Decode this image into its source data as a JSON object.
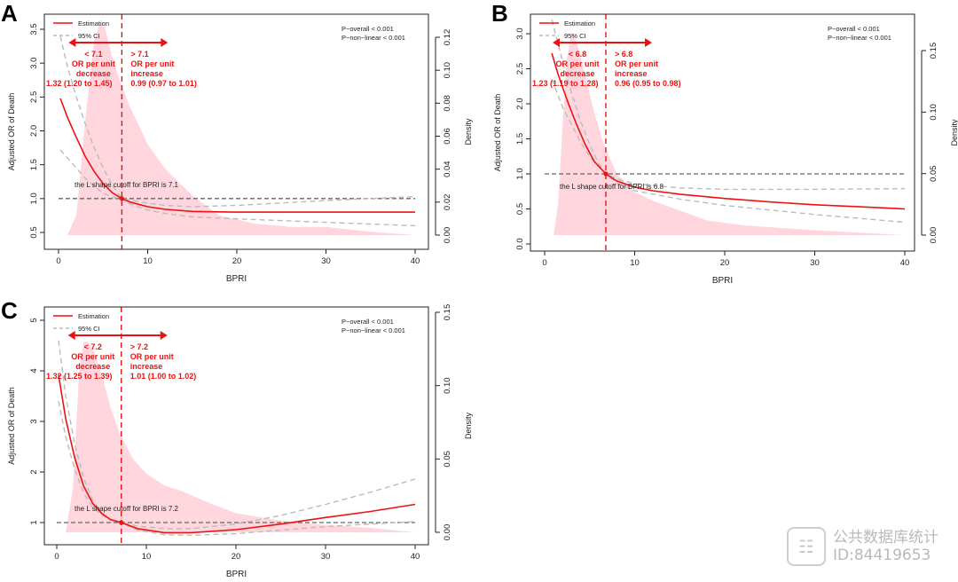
{
  "chart_data": [
    {
      "panel": "A",
      "type": "line",
      "xlabel": "BPRI",
      "ylabel": "Adjusted OR of Death",
      "y2label": "Density",
      "xlim": [
        0,
        40
      ],
      "ylim": [
        0.5,
        3.5
      ],
      "y2lim": [
        0.0,
        0.12
      ],
      "xticks": [
        0,
        10,
        20,
        30,
        40
      ],
      "yticks": [
        "0.5",
        "1.0",
        "1.5",
        "2.0",
        "2.5",
        "3.0",
        "3.5"
      ],
      "y2ticks": [
        "0.00",
        "0.02",
        "0.04",
        "0.06",
        "0.08",
        "0.10",
        "0.12"
      ],
      "legend": [
        "Estimation",
        "95% CI"
      ],
      "p_overall": "P−overall < 0.001",
      "p_nonlinear": "P−non−linear < 0.001",
      "cutoff": 7.1,
      "cutoff_text": "the L shape cutoff for BPRI is 7.1",
      "left_label": [
        "< 7.1",
        "OR per unit",
        "decrease",
        "1.32 (1.20 to 1.45)"
      ],
      "right_label": [
        "> 7.1",
        "OR per unit",
        "increase",
        "0.99 (0.97 to 1.01)"
      ],
      "estimation": {
        "x": [
          0.2,
          1,
          2,
          3,
          4,
          5,
          6,
          7.1,
          8,
          10,
          12,
          15,
          20,
          25,
          30,
          40
        ],
        "y": [
          2.48,
          2.2,
          1.9,
          1.62,
          1.4,
          1.22,
          1.09,
          1.0,
          0.95,
          0.88,
          0.84,
          0.81,
          0.8,
          0.8,
          0.8,
          0.8
        ]
      },
      "ci_upper": {
        "x": [
          0.2,
          1,
          2,
          3,
          4,
          5,
          6,
          7.1,
          8,
          10,
          12,
          15,
          20,
          30,
          40
        ],
        "y": [
          3.4,
          2.95,
          2.5,
          2.1,
          1.75,
          1.45,
          1.2,
          1.0,
          0.98,
          0.93,
          0.9,
          0.88,
          0.9,
          0.97,
          1.03
        ]
      },
      "ci_lower": {
        "x": [
          0.2,
          1,
          2,
          3,
          4,
          5,
          6,
          7.1,
          8,
          10,
          12,
          15,
          20,
          30,
          40
        ],
        "y": [
          1.72,
          1.6,
          1.45,
          1.3,
          1.18,
          1.08,
          1.02,
          1.0,
          0.92,
          0.83,
          0.78,
          0.73,
          0.7,
          0.65,
          0.6
        ]
      },
      "density": {
        "x": [
          1,
          2,
          3,
          4,
          4.6,
          5.2,
          6,
          7,
          8,
          10,
          12,
          15,
          18,
          22,
          26,
          30,
          35,
          40
        ],
        "y": [
          0.0,
          0.012,
          0.07,
          0.118,
          0.128,
          0.126,
          0.108,
          0.092,
          0.078,
          0.055,
          0.04,
          0.024,
          0.012,
          0.007,
          0.005,
          0.005,
          0.002,
          0.0
        ]
      }
    },
    {
      "panel": "B",
      "type": "line",
      "xlabel": "BPRI",
      "ylabel": "Adjusted OR of Death",
      "y2label": "Density",
      "xlim": [
        0,
        40
      ],
      "ylim": [
        0.0,
        3.0
      ],
      "y2lim": [
        0.0,
        0.15
      ],
      "xticks": [
        0,
        10,
        20,
        30,
        40
      ],
      "yticks": [
        "0.0",
        "0.5",
        "1.0",
        "1.5",
        "2.0",
        "2.5",
        "3.0"
      ],
      "y2ticks": [
        "0.00",
        "0.05",
        "0.10",
        "0.15"
      ],
      "legend": [
        "Estimation",
        "95% CI"
      ],
      "p_overall": "P−overall < 0.001",
      "p_nonlinear": "P−non−linear < 0.001",
      "cutoff": 6.8,
      "cutoff_text": "the L shape cutoff for BPRI is 6.8",
      "left_label": [
        "< 6.8",
        "OR per unit",
        "decrease",
        "1.23 (1.19 to 1.28)"
      ],
      "right_label": [
        "> 6.8",
        "OR per unit",
        "increase",
        "0.96 (0.95 to 0.98)"
      ],
      "estimation": {
        "x": [
          0.8,
          1.5,
          2.5,
          3.5,
          4.5,
          5.5,
          6.8,
          8,
          10,
          12,
          15,
          20,
          25,
          30,
          35,
          40
        ],
        "y": [
          2.72,
          2.42,
          2.05,
          1.72,
          1.42,
          1.18,
          1.0,
          0.9,
          0.81,
          0.76,
          0.71,
          0.65,
          0.6,
          0.56,
          0.53,
          0.5
        ]
      },
      "ci_upper": {
        "x": [
          0.8,
          2,
          3,
          4,
          5,
          6,
          6.8,
          8,
          10,
          15,
          20,
          30,
          40
        ],
        "y": [
          3.2,
          2.6,
          2.15,
          1.75,
          1.42,
          1.15,
          1.0,
          0.93,
          0.86,
          0.8,
          0.78,
          0.78,
          0.79
        ]
      },
      "ci_lower": {
        "x": [
          0.8,
          2,
          3,
          4,
          5,
          6,
          6.8,
          8,
          10,
          15,
          20,
          30,
          40
        ],
        "y": [
          2.35,
          1.95,
          1.7,
          1.45,
          1.25,
          1.1,
          1.0,
          0.87,
          0.76,
          0.64,
          0.55,
          0.42,
          0.31
        ]
      },
      "density": {
        "x": [
          1,
          1.5,
          2,
          2.5,
          3,
          3.5,
          4.5,
          5.5,
          6.5,
          8,
          10,
          12,
          15,
          18,
          22,
          26,
          30,
          35,
          40
        ],
        "y": [
          0.0,
          0.025,
          0.09,
          0.145,
          0.165,
          0.158,
          0.13,
          0.1,
          0.075,
          0.05,
          0.035,
          0.028,
          0.02,
          0.012,
          0.008,
          0.006,
          0.004,
          0.002,
          0.0
        ]
      }
    },
    {
      "panel": "C",
      "type": "line",
      "xlabel": "BPRI",
      "ylabel": "Adjusted OR of Death",
      "y2label": "Density",
      "xlim": [
        0,
        40
      ],
      "ylim": [
        0.7,
        5.0
      ],
      "y2lim": [
        0.0,
        0.15
      ],
      "xticks": [
        0,
        10,
        20,
        30,
        40
      ],
      "yticks": [
        "1",
        "2",
        "3",
        "4",
        "5"
      ],
      "y2ticks": [
        "0.00",
        "0.05",
        "0.10",
        "0.15"
      ],
      "legend": [
        "Estimation",
        "95% CI"
      ],
      "p_overall": "P−overall < 0.001",
      "p_nonlinear": "P−non−linear < 0.001",
      "cutoff": 7.2,
      "cutoff_text": "the L shape cutoff for BPRI is 7.2",
      "left_label": [
        "< 7.2",
        "OR per unit",
        "decrease",
        "1.32 (1.25 to 1.39)"
      ],
      "right_label": [
        "> 7.2",
        "OR per unit",
        "increase",
        "1.01 (1.00 to 1.02)"
      ],
      "estimation": {
        "x": [
          0.2,
          1,
          2,
          3,
          4,
          5,
          6,
          7.2,
          9,
          12,
          15,
          20,
          25,
          30,
          35,
          40
        ],
        "y": [
          3.92,
          3.05,
          2.28,
          1.72,
          1.38,
          1.18,
          1.06,
          1.0,
          0.88,
          0.8,
          0.8,
          0.86,
          0.97,
          1.1,
          1.22,
          1.36
        ]
      },
      "ci_upper": {
        "x": [
          0.2,
          1,
          2,
          3,
          4,
          5,
          6,
          7.2,
          9,
          12,
          15,
          20,
          25,
          30,
          35,
          40
        ],
        "y": [
          4.6,
          3.5,
          2.55,
          1.88,
          1.45,
          1.2,
          1.06,
          1.0,
          0.93,
          0.88,
          0.88,
          0.97,
          1.14,
          1.36,
          1.6,
          1.86
        ]
      },
      "ci_lower": {
        "x": [
          0.2,
          1,
          2,
          3,
          4,
          5,
          6,
          7.2,
          9,
          12,
          15,
          20,
          25,
          30,
          35,
          40
        ],
        "y": [
          3.4,
          2.7,
          2.05,
          1.58,
          1.3,
          1.15,
          1.05,
          1.0,
          0.85,
          0.76,
          0.75,
          0.78,
          0.85,
          0.92,
          0.97,
          1.02
        ]
      },
      "density": {
        "x": [
          1,
          1.8,
          2.5,
          3,
          3.5,
          4.2,
          5,
          6,
          7,
          8.5,
          10,
          12,
          14,
          17,
          20,
          25,
          30,
          35,
          40
        ],
        "y": [
          0.0,
          0.03,
          0.11,
          0.13,
          0.13,
          0.122,
          0.108,
          0.085,
          0.068,
          0.05,
          0.04,
          0.032,
          0.028,
          0.02,
          0.013,
          0.008,
          0.005,
          0.003,
          0.0
        ]
      }
    }
  ],
  "watermark": {
    "line1": "公共数据库统计",
    "line2": "ID:84419653",
    "icon": "document-icon"
  }
}
